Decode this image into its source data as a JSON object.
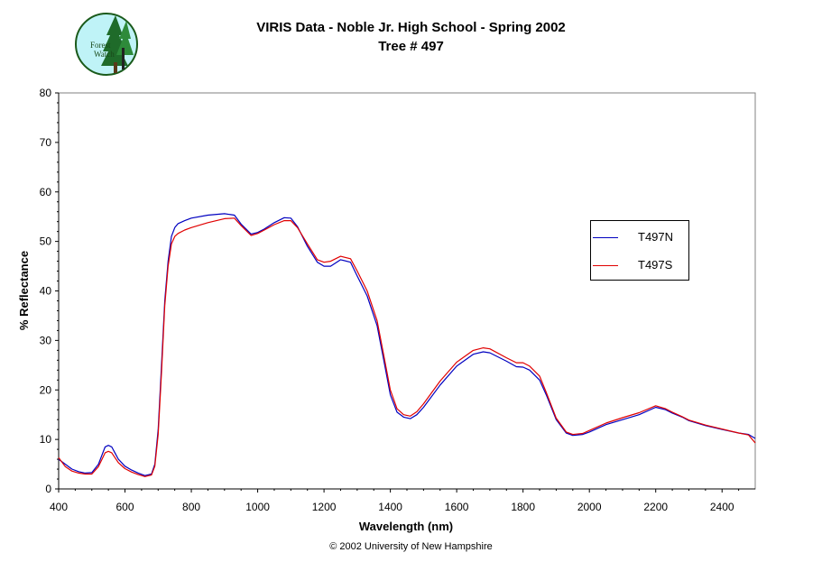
{
  "logo": {
    "text_line1": "Forest",
    "text_line2": "Watch"
  },
  "chart_data": {
    "type": "line",
    "title": "VIRIS Data - Noble Jr. High School - Spring 2002",
    "subtitle": "Tree # 497",
    "xlabel": "Wavelength (nm)",
    "ylabel": "% Reflectance",
    "xlim": [
      400,
      2500
    ],
    "ylim": [
      0,
      80
    ],
    "xticks": [
      400,
      600,
      800,
      1000,
      1200,
      1400,
      1600,
      1800,
      2000,
      2200,
      2400
    ],
    "yticks": [
      0,
      10,
      20,
      30,
      40,
      50,
      60,
      70,
      80
    ],
    "grid": false,
    "legend_position": "right",
    "series": [
      {
        "name": "T497N",
        "color": "#0000c0",
        "x": [
          400,
          420,
          440,
          460,
          480,
          500,
          520,
          540,
          550,
          560,
          580,
          600,
          620,
          640,
          660,
          680,
          690,
          700,
          710,
          720,
          730,
          740,
          750,
          760,
          780,
          800,
          850,
          900,
          930,
          950,
          980,
          1000,
          1020,
          1050,
          1080,
          1100,
          1120,
          1150,
          1180,
          1200,
          1220,
          1250,
          1280,
          1300,
          1330,
          1360,
          1380,
          1400,
          1420,
          1440,
          1460,
          1480,
          1500,
          1550,
          1600,
          1650,
          1680,
          1700,
          1750,
          1780,
          1800,
          1820,
          1850,
          1870,
          1900,
          1930,
          1950,
          1980,
          2000,
          2050,
          2100,
          2150,
          2200,
          2230,
          2250,
          2280,
          2300,
          2350,
          2400,
          2450,
          2480,
          2500
        ],
        "y": [
          6.0,
          5.0,
          4.0,
          3.5,
          3.2,
          3.3,
          5.0,
          8.5,
          8.8,
          8.5,
          6.0,
          4.6,
          3.8,
          3.2,
          2.7,
          3.0,
          5.0,
          12.0,
          25.0,
          38.0,
          46.0,
          51.0,
          52.8,
          53.6,
          54.2,
          54.7,
          55.3,
          55.6,
          55.3,
          53.5,
          51.5,
          51.8,
          52.5,
          53.8,
          54.8,
          54.7,
          53.0,
          49.0,
          45.8,
          45.0,
          45.0,
          46.3,
          45.8,
          43.0,
          39.0,
          33.0,
          26.0,
          19.0,
          15.5,
          14.5,
          14.2,
          15.0,
          16.5,
          21.0,
          24.8,
          27.2,
          27.7,
          27.5,
          25.8,
          24.7,
          24.6,
          24.0,
          22.0,
          19.0,
          14.0,
          11.3,
          10.8,
          11.0,
          11.5,
          13.0,
          14.0,
          15.0,
          16.5,
          16.0,
          15.3,
          14.5,
          13.8,
          12.8,
          12.0,
          11.3,
          11.0,
          10.2
        ]
      },
      {
        "name": "T497S",
        "color": "#e00000",
        "x": [
          400,
          420,
          440,
          460,
          480,
          500,
          520,
          540,
          550,
          560,
          580,
          600,
          620,
          640,
          660,
          680,
          690,
          700,
          710,
          720,
          730,
          740,
          750,
          760,
          780,
          800,
          850,
          900,
          930,
          950,
          980,
          1000,
          1020,
          1050,
          1080,
          1100,
          1120,
          1150,
          1180,
          1200,
          1220,
          1250,
          1280,
          1300,
          1330,
          1360,
          1380,
          1400,
          1420,
          1440,
          1460,
          1480,
          1500,
          1550,
          1600,
          1650,
          1680,
          1700,
          1750,
          1780,
          1800,
          1820,
          1850,
          1870,
          1900,
          1930,
          1950,
          1980,
          2000,
          2050,
          2100,
          2150,
          2200,
          2230,
          2250,
          2280,
          2300,
          2350,
          2400,
          2450,
          2480,
          2500
        ],
        "y": [
          6.3,
          4.5,
          3.6,
          3.2,
          3.0,
          3.0,
          4.5,
          7.3,
          7.6,
          7.3,
          5.3,
          4.1,
          3.4,
          2.9,
          2.5,
          2.8,
          4.6,
          11.0,
          23.5,
          37.0,
          45.0,
          49.5,
          51.0,
          51.6,
          52.3,
          52.8,
          53.8,
          54.6,
          54.7,
          53.2,
          51.2,
          51.6,
          52.3,
          53.4,
          54.2,
          54.2,
          52.8,
          49.5,
          46.3,
          45.8,
          46.0,
          47.0,
          46.5,
          44.0,
          40.0,
          34.0,
          27.0,
          20.0,
          16.2,
          15.0,
          14.7,
          15.6,
          17.2,
          21.8,
          25.6,
          28.0,
          28.5,
          28.3,
          26.5,
          25.5,
          25.5,
          24.8,
          22.8,
          19.5,
          14.3,
          11.5,
          11.0,
          11.2,
          11.8,
          13.3,
          14.4,
          15.4,
          16.8,
          16.2,
          15.5,
          14.6,
          13.9,
          12.9,
          12.1,
          11.3,
          10.9,
          9.3
        ]
      }
    ]
  },
  "footer": "© 2002 University of New Hampshire"
}
